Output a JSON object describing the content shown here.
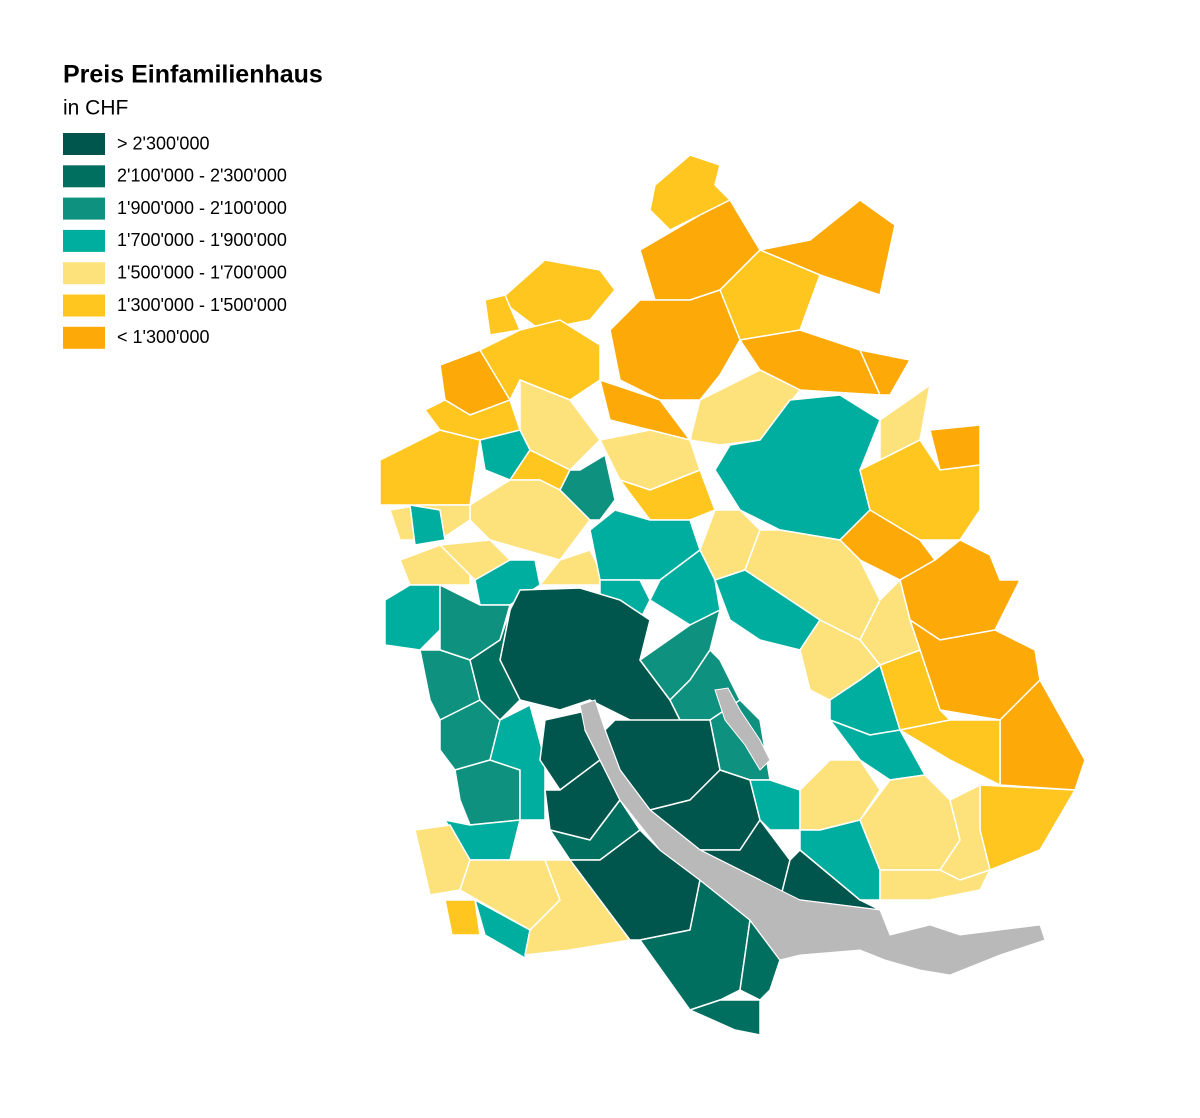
{
  "legend": {
    "title": "Preis Einfamilienhaus",
    "subtitle": "in CHF",
    "items": [
      {
        "label": "> 2'300'000",
        "color": "#00564d"
      },
      {
        "label": "2'100'000 - 2'300'000",
        "color": "#006f5f"
      },
      {
        "label": "1'900'000 - 2'100'000",
        "color": "#0e917e"
      },
      {
        "label": "1'700'000 - 1'900'000",
        "color": "#00ae9f"
      },
      {
        "label": "1'500'000 - 1'700'000",
        "color": "#fde27c"
      },
      {
        "label": "1'300'000 - 1'500'000",
        "color": "#fec61e"
      },
      {
        "label": "< 1'300'000",
        "color": "#fdaa08"
      }
    ]
  }
}
